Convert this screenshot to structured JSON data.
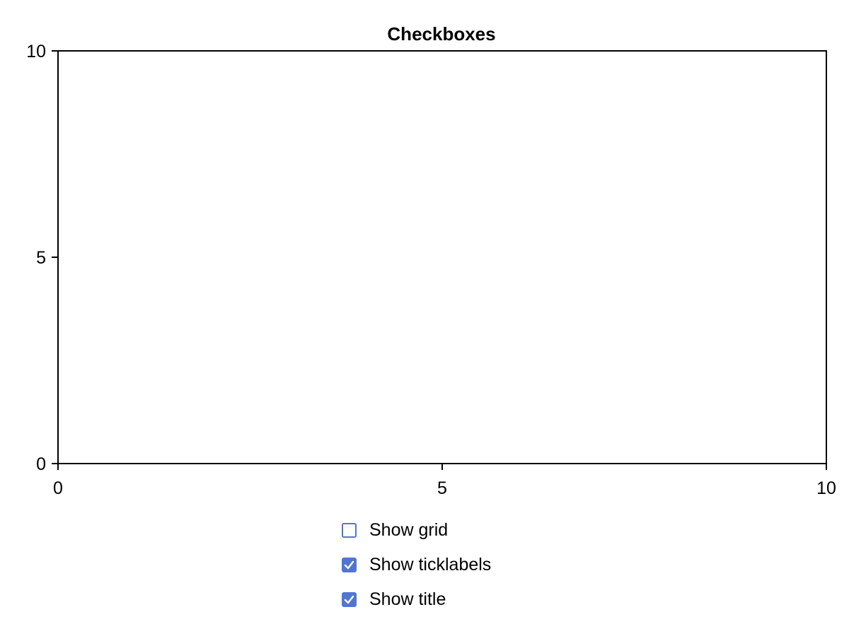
{
  "chart_data": {
    "type": "scatter",
    "title": "Checkboxes",
    "xlabel": "",
    "ylabel": "",
    "xlim": [
      0,
      10
    ],
    "ylim": [
      0,
      10
    ],
    "xticks": [
      0,
      5,
      10
    ],
    "yticks": [
      0,
      5,
      10
    ],
    "xtick_labels": [
      "0",
      "5",
      "10"
    ],
    "ytick_labels": [
      "0",
      "5",
      "10"
    ],
    "series": [],
    "grid": false
  },
  "controls": {
    "checkboxes": [
      {
        "label": "Show grid",
        "checked": false
      },
      {
        "label": "Show ticklabels",
        "checked": true
      },
      {
        "label": "Show title",
        "checked": true
      }
    ]
  },
  "colors": {
    "accent": "#5176d2",
    "axis": "#000000",
    "background": "#ffffff"
  },
  "icons": {
    "check": "check-icon"
  }
}
